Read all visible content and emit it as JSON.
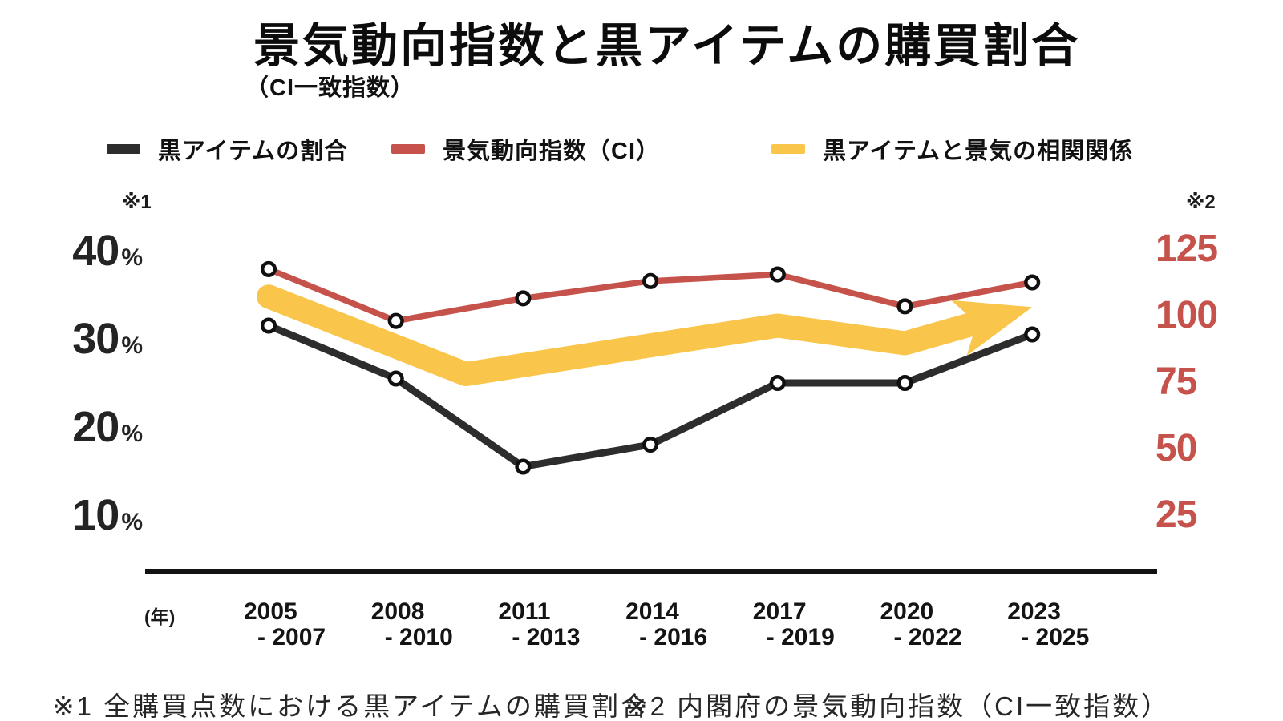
{
  "page": {
    "title": "景気動向指数と黒アイテムの購買割合",
    "subtitle": "（CI一致指数）",
    "footnote_1": "※1 全購買点数における黒アイテムの購買割合",
    "footnote_2": "※2 内閣府の景気動向指数（CI一致指数）"
  },
  "legend": {
    "items": [
      {
        "label": "黒アイテムの割合",
        "color": "#2D2D2D"
      },
      {
        "label": "景気動向指数（CI）",
        "color": "#C5534C"
      },
      {
        "label": "黒アイテムと景気の相関関係",
        "color": "#F9C64B"
      }
    ]
  },
  "axes": {
    "left_note": "※1",
    "right_note": "※2",
    "x_unit": "(年)"
  },
  "chart_data": {
    "type": "line",
    "title": "景気動向指数と黒アイテムの購買割合",
    "subtitle": "（CI一致指数）",
    "grid": false,
    "legend_position": "top",
    "categories": [
      "2005-2007",
      "2008-2010",
      "2011-2013",
      "2014-2016",
      "2017-2019",
      "2020-2022",
      "2023-2025"
    ],
    "categories_display": [
      {
        "line1": "2005",
        "line2": "- 2007"
      },
      {
        "line1": "2008",
        "line2": "- 2010"
      },
      {
        "line1": "2011",
        "line2": "- 2013"
      },
      {
        "line1": "2014",
        "line2": "- 2016"
      },
      {
        "line1": "2017",
        "line2": "- 2019"
      },
      {
        "line1": "2020",
        "line2": "- 2022"
      },
      {
        "line1": "2023",
        "line2": "- 2025"
      }
    ],
    "left_axis": {
      "note": "※1",
      "unit": "%",
      "ticks": [
        40,
        30,
        20,
        10
      ],
      "range": [
        5,
        45
      ]
    },
    "right_axis": {
      "note": "※2",
      "ticks": [
        125,
        100,
        75,
        50,
        25
      ],
      "range": [
        20,
        130
      ]
    },
    "series": [
      {
        "name": "黒アイテムの割合",
        "type": "line",
        "axis": "left",
        "unit": "%",
        "color": "#2D2D2D",
        "marker": "circle",
        "values": [
          31.5,
          25.5,
          15.5,
          18,
          25,
          25,
          30.5
        ]
      },
      {
        "name": "景気動向指数（CI）",
        "type": "line",
        "axis": "right",
        "color": "#C5534C",
        "marker": "circle",
        "values": [
          117.5,
          98,
          106.5,
          113,
          115.5,
          103.5,
          112.5
        ]
      },
      {
        "name": "黒アイテムと景気の相関関係",
        "type": "arrow-band",
        "axis": "left",
        "color": "#F9C64B",
        "points_x_index": [
          0,
          1.55,
          4,
          5,
          6
        ],
        "points_value": [
          34.8,
          26,
          31.5,
          29.5,
          33.6
        ]
      }
    ]
  }
}
